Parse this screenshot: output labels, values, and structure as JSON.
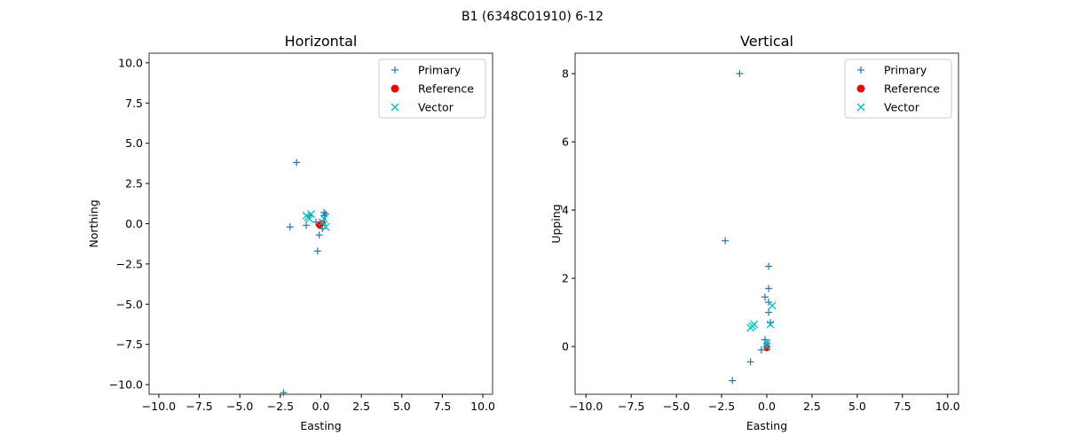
{
  "chart_data": {
    "title": "B1 (6348C01910) 6-12",
    "legend": [
      "Primary",
      "Reference",
      "Vector"
    ],
    "colors": {
      "Primary": "#1f77b4",
      "Reference": "#ff0000",
      "Vector": "#00bfbf"
    },
    "plots": [
      {
        "type": "scatter",
        "title": "Horizontal",
        "xlabel": "Easting",
        "ylabel": "Northing",
        "xlim": [
          -10.6,
          10.6
        ],
        "ylim": [
          -10.6,
          10.6
        ],
        "xticks": [
          "−10.0",
          "−7.5",
          "−5.0",
          "−2.5",
          "0.0",
          "2.5",
          "5.0",
          "7.5",
          "10.0"
        ],
        "yticks": [
          "−10.0",
          "−7.5",
          "−5.0",
          "−2.5",
          "0.0",
          "2.5",
          "5.0",
          "7.5",
          "10.0"
        ],
        "xtickvals": [
          -10,
          -7.5,
          -5,
          -2.5,
          0,
          2.5,
          5,
          7.5,
          10
        ],
        "ytickvals": [
          -10,
          -7.5,
          -5,
          -2.5,
          0,
          2.5,
          5,
          7.5,
          10
        ],
        "primary": [
          [
            -1.5,
            3.8
          ],
          [
            -2.3,
            -10.5
          ],
          [
            -1.9,
            -0.2
          ],
          [
            -0.9,
            -0.1
          ],
          [
            -0.2,
            -1.7
          ],
          [
            -0.1,
            -0.7
          ],
          [
            0.2,
            0.7
          ],
          [
            0.2,
            0.5
          ],
          [
            0.3,
            0.6
          ],
          [
            -0.3,
            0.1
          ],
          [
            0.0,
            -0.1
          ],
          [
            0.1,
            -0.3
          ],
          [
            -0.7,
            0.5
          ]
        ],
        "reference": [
          [
            0,
            0
          ],
          [
            -0.1,
            -0.1
          ],
          [
            0.1,
            0.05
          ]
        ],
        "vector": [
          [
            -0.8,
            0.4
          ],
          [
            -0.6,
            0.6
          ],
          [
            -0.9,
            0.5
          ],
          [
            -0.7,
            0.3
          ],
          [
            0.3,
            -0.2
          ],
          [
            0.1,
            0.1
          ],
          [
            0.2,
            0.3
          ]
        ]
      },
      {
        "type": "scatter",
        "title": "Vertical",
        "xlabel": "Easting",
        "ylabel": "Upping",
        "xlim": [
          -10.6,
          10.6
        ],
        "ylim": [
          -1.4,
          8.6
        ],
        "xticks": [
          "−10.0",
          "−7.5",
          "−5.0",
          "−2.5",
          "0.0",
          "2.5",
          "5.0",
          "7.5",
          "10.0"
        ],
        "yticks": [
          "0",
          "2",
          "4",
          "6",
          "8"
        ],
        "xtickvals": [
          -10,
          -7.5,
          -5,
          -2.5,
          0,
          2.5,
          5,
          7.5,
          10
        ],
        "ytickvals": [
          0,
          2,
          4,
          6,
          8
        ],
        "primary": [
          [
            -1.5,
            8.0
          ],
          [
            -2.3,
            3.1
          ],
          [
            0.1,
            2.35
          ],
          [
            0.1,
            1.7
          ],
          [
            -0.1,
            1.45
          ],
          [
            0.1,
            1.3
          ],
          [
            0.1,
            1.0
          ],
          [
            0.2,
            0.7
          ],
          [
            -0.1,
            0.2
          ],
          [
            -0.3,
            -0.1
          ],
          [
            -0.9,
            -0.45
          ],
          [
            -1.9,
            -1.0
          ],
          [
            0.0,
            0.1
          ]
        ],
        "reference": [
          [
            0,
            0
          ],
          [
            0,
            -0.05
          ]
        ],
        "vector": [
          [
            -0.8,
            0.6
          ],
          [
            -0.7,
            0.65
          ],
          [
            -0.9,
            0.55
          ],
          [
            0.3,
            1.2
          ],
          [
            0.2,
            0.65
          ],
          [
            0.0,
            0.1
          ],
          [
            0.0,
            0.0
          ]
        ]
      }
    ]
  }
}
